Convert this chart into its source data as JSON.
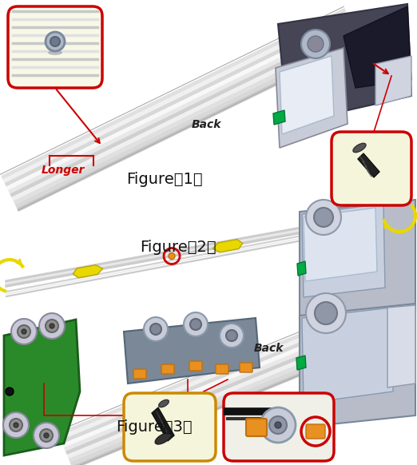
{
  "bg": "#ffffff",
  "fig_w": 5.22,
  "fig_h": 5.82,
  "dpi": 100,
  "red": "#cc0000",
  "dark_red": "#aa0000",
  "yellow_arrow": "#e8d800",
  "green": "#00aa44",
  "orange": "#e89020",
  "rail_light": "#e8e8e8",
  "rail_mid": "#d0d0d0",
  "rail_dark": "#b0b0b0",
  "rail_stripe": "#f5f5f5",
  "motor_light": "#c8ccd8",
  "motor_mid": "#9098b0",
  "motor_dark": "#606878",
  "green_bracket": "#2a8a2a",
  "green_bracket_dark": "#1a5c1a",
  "inset1_bg": "#f8f8e8",
  "inset2_bg": "#f5f5dc",
  "inset3a_bg": "#f5f5dc",
  "inset3b_bg": "#f0f0e8",
  "gray_carriage": "#7a8898",
  "fig1_label": "Figure（1）",
  "fig2_label": "Figure（2）",
  "fig3_label": "Figure（3）",
  "back_label": "Back",
  "longer_label": "Longer"
}
